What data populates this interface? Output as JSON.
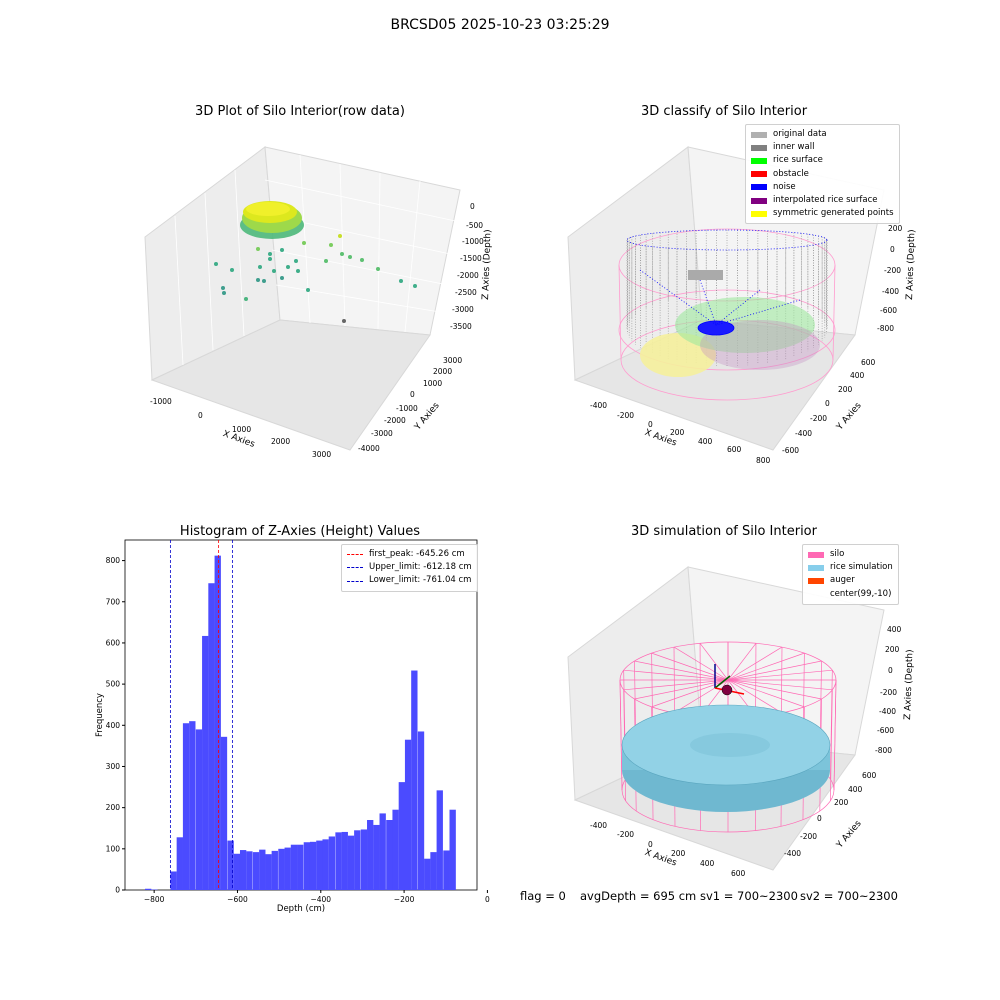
{
  "suptitle": "BRCSD05 2025-10-23 03:25:29",
  "panel_titles": {
    "raw": "3D Plot of Silo Interior(row data)",
    "classify": "3D classify of Silo Interior",
    "hist": "Histogram of Z-Axies (Height) Values",
    "sim": "3D simulation of Silo Interior"
  },
  "footer": {
    "flag": "flag = 0",
    "avg": "avgDepth = 695 cm",
    "sv1": "sv1 = 700~2300",
    "sv2": "sv2 = 700~2300"
  },
  "legend_classify": [
    {
      "label": "original data",
      "color": "#b0b0b0"
    },
    {
      "label": "inner wall",
      "color": "#808080"
    },
    {
      "label": "rice surface",
      "color": "#00ff00"
    },
    {
      "label": "obstacle",
      "color": "#ff0000"
    },
    {
      "label": "noise",
      "color": "#0000ff"
    },
    {
      "label": "interpolated rice surface",
      "color": "#800080"
    },
    {
      "label": "symmetric generated points",
      "color": "#ffff00"
    }
  ],
  "legend_sim": [
    {
      "label": "silo",
      "color": "#ff69b4"
    },
    {
      "label": "rice simulation",
      "color": "#87ceeb"
    },
    {
      "label": "auger",
      "color": "#ff4500"
    },
    {
      "label": "center(99,-10)",
      "color": ""
    }
  ],
  "axes3d": {
    "raw": {
      "xlabel": "X Axies",
      "ylabel": "Y Axies",
      "zlabel": "Z Axies (Depth)",
      "xticks": [
        "-1000",
        "0",
        "1000",
        "2000",
        "3000"
      ],
      "yticks": [
        "-4000",
        "-3000",
        "-2000",
        "-1000",
        "0",
        "1000",
        "2000",
        "3000"
      ],
      "zticks": [
        "0",
        "-500",
        "-1000",
        "-1500",
        "-2000",
        "-2500",
        "-3000",
        "-3500"
      ]
    },
    "classify": {
      "xlabel": "X Axies",
      "ylabel": "Y Axies",
      "zlabel": "Z Axies (Depth)",
      "xticks": [
        "-400",
        "-200",
        "0",
        "200",
        "400",
        "600",
        "800"
      ],
      "yticks": [
        "-600",
        "-400",
        "-200",
        "0",
        "200",
        "400",
        "600"
      ],
      "zticks": [
        "200",
        "0",
        "-200",
        "-400",
        "-600",
        "-800"
      ]
    },
    "sim": {
      "xlabel": "X Axies",
      "ylabel": "Y Axies",
      "zlabel": "Z Axies (Depth)",
      "xticks": [
        "-400",
        "-200",
        "0",
        "200",
        "400",
        "600"
      ],
      "yticks": [
        "-400",
        "-200",
        "0",
        "200",
        "400",
        "600"
      ],
      "zticks": [
        "400",
        "200",
        "0",
        "-200",
        "-400",
        "-600",
        "-800"
      ]
    }
  },
  "chart_data": {
    "type": "bar",
    "title": "Histogram of Z-Axies (Height) Values",
    "xlabel": "Depth (cm)",
    "ylabel": "Frequency",
    "xlim": [
      -870,
      -25
    ],
    "ylim": [
      0,
      850
    ],
    "xticks": [
      -800,
      -600,
      -400,
      -200,
      0
    ],
    "yticks": [
      0,
      100,
      200,
      300,
      400,
      500,
      600,
      700,
      800
    ],
    "bin_width": 15.2,
    "bins": [
      {
        "x": -822,
        "v": 3
      },
      {
        "x": -807,
        "v": 1
      },
      {
        "x": -761,
        "v": 45
      },
      {
        "x": -746,
        "v": 128
      },
      {
        "x": -731,
        "v": 405
      },
      {
        "x": -716,
        "v": 410
      },
      {
        "x": -700,
        "v": 390
      },
      {
        "x": -685,
        "v": 617
      },
      {
        "x": -670,
        "v": 745
      },
      {
        "x": -655,
        "v": 812
      },
      {
        "x": -640,
        "v": 372
      },
      {
        "x": -624,
        "v": 120
      },
      {
        "x": -609,
        "v": 88
      },
      {
        "x": -594,
        "v": 97
      },
      {
        "x": -579,
        "v": 94
      },
      {
        "x": -563,
        "v": 92
      },
      {
        "x": -548,
        "v": 98
      },
      {
        "x": -533,
        "v": 87
      },
      {
        "x": -518,
        "v": 95
      },
      {
        "x": -502,
        "v": 100
      },
      {
        "x": -487,
        "v": 103
      },
      {
        "x": -472,
        "v": 110
      },
      {
        "x": -457,
        "v": 110
      },
      {
        "x": -441,
        "v": 116
      },
      {
        "x": -426,
        "v": 117
      },
      {
        "x": -411,
        "v": 120
      },
      {
        "x": -396,
        "v": 123
      },
      {
        "x": -381,
        "v": 130
      },
      {
        "x": -365,
        "v": 140
      },
      {
        "x": -350,
        "v": 141
      },
      {
        "x": -335,
        "v": 132
      },
      {
        "x": -320,
        "v": 145
      },
      {
        "x": -304,
        "v": 147
      },
      {
        "x": -289,
        "v": 170
      },
      {
        "x": -274,
        "v": 158
      },
      {
        "x": -259,
        "v": 186
      },
      {
        "x": -243,
        "v": 170
      },
      {
        "x": -228,
        "v": 195
      },
      {
        "x": -213,
        "v": 262
      },
      {
        "x": -198,
        "v": 365
      },
      {
        "x": -183,
        "v": 533
      },
      {
        "x": -167,
        "v": 385
      },
      {
        "x": -152,
        "v": 76
      },
      {
        "x": -137,
        "v": 92
      },
      {
        "x": -122,
        "v": 242
      },
      {
        "x": -106,
        "v": 96
      },
      {
        "x": -91,
        "v": 195
      }
    ],
    "series": [
      {
        "name": "",
        "color": "#4b4bff"
      }
    ],
    "vlines": [
      {
        "label": "first_peak: -645.26 cm",
        "x": -645.26,
        "color": "#ff0000"
      },
      {
        "label": "Upper_limit: -612.18 cm",
        "x": -612.18,
        "color": "#0000cc"
      },
      {
        "label": "Lower_limit: -761.04 cm",
        "x": -761.04,
        "color": "#0000cc"
      }
    ],
    "legend": "top-right",
    "grid": false
  }
}
